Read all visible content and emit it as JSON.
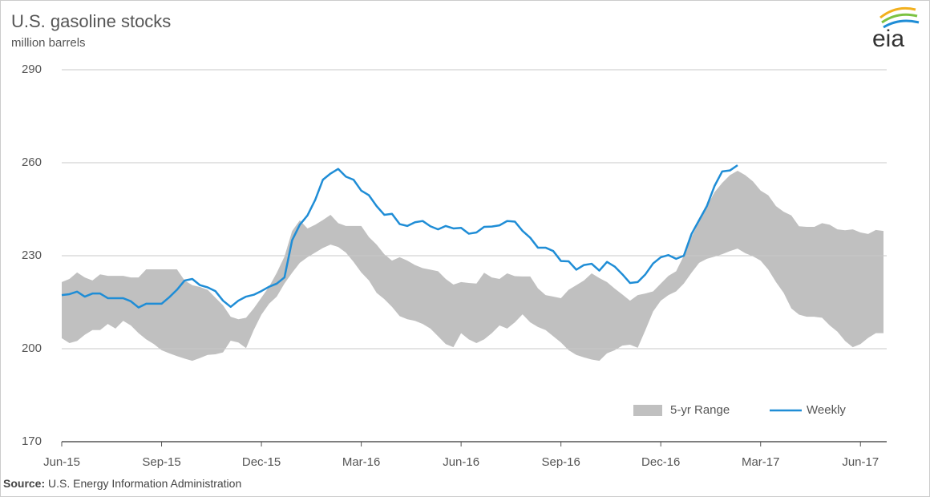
{
  "chart_data": {
    "type": "line",
    "title": "U.S. gasoline stocks",
    "subtitle": "million barrels",
    "source_label": "Source:",
    "source": "U.S. Energy Information Administration",
    "logo": "eia",
    "categories": [
      "Jun-15",
      null,
      null,
      null,
      null,
      null,
      null,
      null,
      null,
      null,
      null,
      null,
      null,
      "Sep-15",
      null,
      null,
      null,
      null,
      null,
      null,
      null,
      null,
      null,
      null,
      null,
      null,
      "Dec-15",
      null,
      null,
      null,
      null,
      null,
      null,
      null,
      null,
      null,
      null,
      null,
      null,
      "Mar-16",
      null,
      null,
      null,
      null,
      null,
      null,
      null,
      null,
      null,
      null,
      null,
      null,
      "Jun-16",
      null,
      null,
      null,
      null,
      null,
      null,
      null,
      null,
      null,
      null,
      null,
      null,
      "Sep-16",
      null,
      null,
      null,
      null,
      null,
      null,
      null,
      null,
      null,
      null,
      null,
      null,
      "Dec-16",
      null,
      null,
      null,
      null,
      null,
      null,
      null,
      null,
      null,
      null,
      null,
      null,
      "Mar-17",
      null,
      null,
      null,
      null,
      null,
      null,
      null,
      null,
      null,
      null,
      null,
      null,
      "Jun-17",
      null,
      null,
      null
    ],
    "series": [
      {
        "name": "5-yr Range",
        "color": "#c0c0c0",
        "type": "range",
        "upper": [
          221.5,
          222.5,
          224.6,
          223,
          222,
          224,
          223.5,
          223.5,
          223.5,
          223,
          223,
          225.6,
          225.6,
          225.6,
          225.6,
          225.6,
          222,
          220.5,
          219.9,
          219,
          216.5,
          214,
          210.3,
          209.5,
          210,
          213,
          216.5,
          220,
          224.5,
          229.7,
          238,
          241.4,
          238.8,
          240,
          241.5,
          243.2,
          240.5,
          239.6,
          239.6,
          239.6,
          236,
          233.6,
          230.5,
          228.4,
          229.5,
          228.4,
          227,
          226,
          225.5,
          225,
          222.5,
          220.7,
          221.5,
          221.2,
          221,
          224.5,
          223,
          222.5,
          224.3,
          223.4,
          223.3,
          223.3,
          219.5,
          217.3,
          216.8,
          216.3,
          219,
          220.5,
          222,
          224.3,
          222.8,
          221.5,
          219.4,
          217.5,
          215.5,
          217.3,
          217.8,
          218.5,
          221,
          223.5,
          225,
          230,
          236,
          241,
          246,
          250.5,
          253.5,
          256,
          257.4,
          256,
          254,
          251,
          249.5,
          246,
          244.2,
          243,
          239.5,
          239.3,
          239.3,
          240.5,
          240,
          238.5,
          238.2,
          238.5,
          237.5,
          237,
          238.3,
          238
        ],
        "lower": [
          203.4,
          201.8,
          202.5,
          204.5,
          206,
          206,
          208,
          206.5,
          209,
          207.5,
          205,
          203,
          201.5,
          199.5,
          198.5,
          197.6,
          196.8,
          196.1,
          197,
          198,
          198.2,
          198.8,
          202.6,
          202,
          200.2,
          206,
          211,
          214.5,
          216.8,
          221,
          224.5,
          227.7,
          229.5,
          231,
          232.5,
          233.6,
          232.8,
          231,
          228,
          224.6,
          222,
          218,
          216,
          213.5,
          210.5,
          209.5,
          209,
          208,
          206.5,
          204,
          201.5,
          200.5,
          205,
          203,
          201.8,
          203,
          205,
          207.5,
          206.5,
          208.5,
          211.1,
          208.5,
          207,
          206,
          204,
          202,
          199.5,
          198,
          197.2,
          196.5,
          196.1,
          198.5,
          199.5,
          201,
          201.3,
          200.3,
          206,
          212,
          215.5,
          217.3,
          218.5,
          221,
          224.5,
          227.7,
          229,
          229.7,
          230.5,
          231.5,
          232.3,
          230.8,
          229.8,
          228.4,
          225.5,
          221.5,
          218,
          213,
          211,
          210.3,
          210.3,
          210,
          207.5,
          205.5,
          202.5,
          200.5,
          201.5,
          203.5,
          205,
          205
        ]
      },
      {
        "name": "Weekly",
        "color": "#1f8dd6",
        "values": [
          217.3,
          217.6,
          218.4,
          216.8,
          217.8,
          217.8,
          216.3,
          216.3,
          216.3,
          215.3,
          213.3,
          214.5,
          214.5,
          214.5,
          216.6,
          219,
          222,
          222.5,
          220.5,
          219.8,
          218.6,
          215.5,
          213.5,
          215.5,
          216.8,
          217.4,
          218.6,
          220,
          221,
          223,
          235,
          240,
          243,
          248,
          254.5,
          256.5,
          258,
          255.5,
          254.5,
          251,
          249.5,
          246,
          243.2,
          243.5,
          240.2,
          239.6,
          240.8,
          241.2,
          239.5,
          238.5,
          239.6,
          238.8,
          239,
          237.1,
          237.5,
          239.3,
          239.4,
          239.8,
          241.2,
          241,
          238,
          235.8,
          232.6,
          232.6,
          231.5,
          228.3,
          228.2,
          225.5,
          227,
          227.4,
          225.2,
          228,
          226.5,
          224,
          221.2,
          221.5,
          224,
          227.5,
          229.5,
          230.2,
          229,
          230,
          237,
          241.5,
          246,
          252.5,
          257.2,
          257.5,
          259.2,
          null,
          null,
          null,
          null,
          null,
          null,
          null,
          null,
          null,
          null,
          null,
          null,
          null,
          null,
          null,
          null,
          null,
          null,
          null
        ]
      }
    ],
    "ylim": [
      170,
      290
    ],
    "yticks": [
      170,
      200,
      230,
      260,
      290
    ],
    "grid": true,
    "legend": "lower right"
  }
}
